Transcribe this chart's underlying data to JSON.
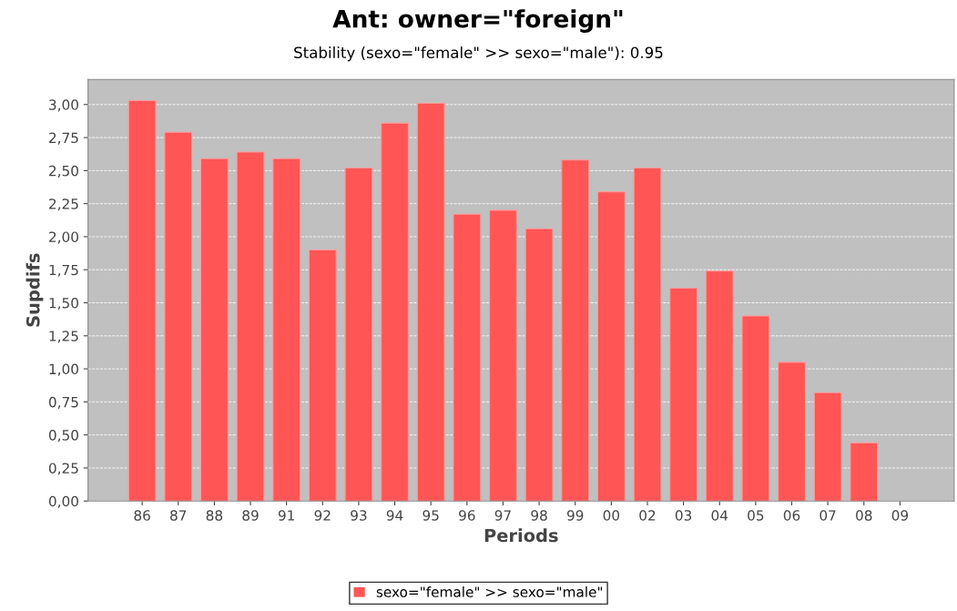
{
  "chart_data": {
    "type": "bar",
    "title": "Ant: owner=\"foreign\"",
    "subtitle": "Stability (sexo=\"female\" >> sexo=\"male\"): 0.95",
    "xlabel": "Periods",
    "ylabel": "Supdifs",
    "categories": [
      "86",
      "87",
      "88",
      "89",
      "91",
      "92",
      "93",
      "94",
      "95",
      "96",
      "97",
      "98",
      "99",
      "00",
      "02",
      "03",
      "04",
      "05",
      "06",
      "07",
      "08",
      "09"
    ],
    "series": [
      {
        "name": "sexo=\"female\" >> sexo=\"male\"",
        "color": "#ff5555",
        "values": [
          3.03,
          2.79,
          2.59,
          2.64,
          2.59,
          1.9,
          2.52,
          2.86,
          3.01,
          2.17,
          2.2,
          2.06,
          2.58,
          2.34,
          2.52,
          1.61,
          1.74,
          1.4,
          1.05,
          0.82,
          0.44,
          null
        ]
      }
    ],
    "ylim": [
      0,
      3.19
    ],
    "yticks": [
      {
        "value": 0,
        "label": "0,00"
      },
      {
        "value": 0.25,
        "label": "0,25"
      },
      {
        "value": 0.5,
        "label": "0,50"
      },
      {
        "value": 0.75,
        "label": "0,75"
      },
      {
        "value": 1,
        "label": "1,00"
      },
      {
        "value": 1.25,
        "label": "1,25"
      },
      {
        "value": 1.5,
        "label": "1,50"
      },
      {
        "value": 1.75,
        "label": "1,75"
      },
      {
        "value": 2,
        "label": "2,00"
      },
      {
        "value": 2.25,
        "label": "2,25"
      },
      {
        "value": 2.5,
        "label": "2,50"
      },
      {
        "value": 2.75,
        "label": "2,75"
      },
      {
        "value": 3,
        "label": "3,00"
      }
    ],
    "grid": "y",
    "legend": "bottom"
  }
}
